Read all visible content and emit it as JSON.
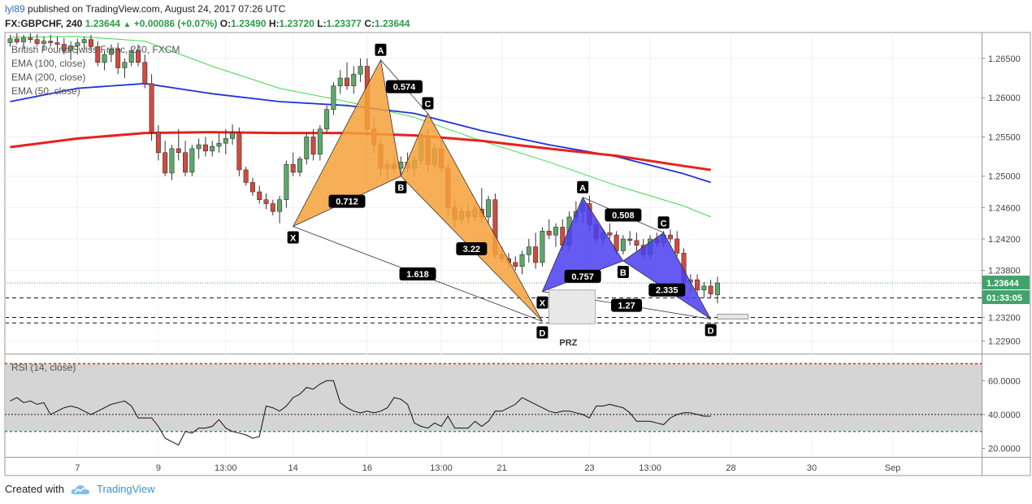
{
  "header": {
    "user": "lyl89",
    "published_text": "published on TradingView.com, August 24, 2017 07:26 UTC",
    "symbol": "FX:GBPCHF, 240",
    "last": "1.23644",
    "change": "+0.00086 (+0.07%)",
    "o_label": "O:",
    "o_value": "1.23490",
    "h_label": "H:",
    "h_value": "1.23720",
    "l_label": "L:",
    "l_value": "1.23377",
    "c_label": "C:",
    "c_value": "1.23644"
  },
  "legend": {
    "line1": "British Pound/Swiss Franc, 240, FXCM",
    "line2": "EMA (100, close)",
    "line3": "EMA (200, close)",
    "line4": "EMA (50, close)"
  },
  "footer": {
    "created_with": "Created with",
    "brand": "TradingView"
  },
  "colors": {
    "bull": "#5ba86a",
    "bear": "#d24a3e",
    "ema50": "#3ddc4a",
    "ema100": "#2132d6",
    "ema200": "#e5231d",
    "pattern_orange": "#f6a13a",
    "pattern_blue": "#4a3df0",
    "rsi_fill": "#d5d5d5",
    "price_tag": "#3fa36b"
  },
  "chart_data": [
    {
      "type": "candlestick",
      "title": "British Pound/Swiss Franc, 240, FXCM",
      "ylim": [
        1.2275,
        1.2683
      ],
      "y_ticks": [
        "1.26500",
        "1.26000",
        "1.25500",
        "1.25000",
        "1.24600",
        "1.24200",
        "1.23800",
        "1.23200",
        "1.22900"
      ],
      "y_tick_values": [
        1.265,
        1.26,
        1.255,
        1.25,
        1.246,
        1.242,
        1.238,
        1.232,
        1.229
      ],
      "x_ticks": [
        "7",
        "9",
        "13:00",
        "14",
        "16",
        "13:00",
        "21",
        "23",
        "13:00",
        "28",
        "30",
        "Sep"
      ],
      "x_tick_index": [
        10,
        22,
        32,
        42,
        53,
        64,
        73,
        86,
        95,
        107,
        119,
        131
      ],
      "grid": true,
      "candles": [
        [
          1.267,
          1.268,
          1.2665,
          1.2675
        ],
        [
          1.2675,
          1.2682,
          1.2668,
          1.2671
        ],
        [
          1.2671,
          1.268,
          1.2662,
          1.2676
        ],
        [
          1.2676,
          1.2683,
          1.267,
          1.2674
        ],
        [
          1.2674,
          1.2681,
          1.2665,
          1.2669
        ],
        [
          1.2669,
          1.2678,
          1.266,
          1.2672
        ],
        [
          1.2672,
          1.268,
          1.2665,
          1.267
        ],
        [
          1.267,
          1.2678,
          1.266,
          1.2668
        ],
        [
          1.2668,
          1.2676,
          1.2655,
          1.266
        ],
        [
          1.266,
          1.2672,
          1.2648,
          1.2666
        ],
        [
          1.2666,
          1.2675,
          1.2655,
          1.267
        ],
        [
          1.267,
          1.2678,
          1.2662,
          1.2674
        ],
        [
          1.2674,
          1.268,
          1.266,
          1.2665
        ],
        [
          1.2665,
          1.2672,
          1.264,
          1.2645
        ],
        [
          1.2645,
          1.266,
          1.2635,
          1.2655
        ],
        [
          1.2655,
          1.2668,
          1.2645,
          1.2662
        ],
        [
          1.2662,
          1.267,
          1.263,
          1.2638
        ],
        [
          1.2638,
          1.265,
          1.2625,
          1.2645
        ],
        [
          1.2645,
          1.2665,
          1.264,
          1.266
        ],
        [
          1.266,
          1.2668,
          1.264,
          1.2645
        ],
        [
          1.2645,
          1.2655,
          1.2612,
          1.2618
        ],
        [
          1.2618,
          1.263,
          1.2545,
          1.2556
        ],
        [
          1.2556,
          1.2565,
          1.252,
          1.253
        ],
        [
          1.253,
          1.2545,
          1.25,
          1.2504
        ],
        [
          1.2504,
          1.254,
          1.2495,
          1.2535
        ],
        [
          1.2535,
          1.256,
          1.252,
          1.253
        ],
        [
          1.253,
          1.2545,
          1.25,
          1.2505
        ],
        [
          1.2505,
          1.254,
          1.25,
          1.2535
        ],
        [
          1.2535,
          1.2548,
          1.2522,
          1.254
        ],
        [
          1.254,
          1.255,
          1.2525,
          1.2532
        ],
        [
          1.2532,
          1.2545,
          1.2525,
          1.2538
        ],
        [
          1.2538,
          1.2555,
          1.253,
          1.2542
        ],
        [
          1.2542,
          1.256,
          1.2528,
          1.2548
        ],
        [
          1.2548,
          1.2566,
          1.254,
          1.2555
        ],
        [
          1.2555,
          1.2562,
          1.25,
          1.2508
        ],
        [
          1.2508,
          1.2512,
          1.2488,
          1.2492
        ],
        [
          1.2492,
          1.2498,
          1.2475,
          1.248
        ],
        [
          1.248,
          1.2488,
          1.2465,
          1.247
        ],
        [
          1.247,
          1.2478,
          1.2458,
          1.2465
        ],
        [
          1.2465,
          1.247,
          1.245,
          1.2455
        ],
        [
          1.2455,
          1.2475,
          1.244,
          1.247
        ],
        [
          1.247,
          1.252,
          1.246,
          1.2515
        ],
        [
          1.2515,
          1.253,
          1.25,
          1.2505
        ],
        [
          1.2505,
          1.2525,
          1.25,
          1.2522
        ],
        [
          1.2522,
          1.2555,
          1.2515,
          1.255
        ],
        [
          1.255,
          1.256,
          1.252,
          1.2528
        ],
        [
          1.2528,
          1.2565,
          1.252,
          1.256
        ],
        [
          1.256,
          1.259,
          1.2555,
          1.2585
        ],
        [
          1.2585,
          1.262,
          1.2578,
          1.2615
        ],
        [
          1.2615,
          1.2635,
          1.2605,
          1.2625
        ],
        [
          1.2625,
          1.2645,
          1.261,
          1.2615
        ],
        [
          1.2615,
          1.264,
          1.2605,
          1.263
        ],
        [
          1.263,
          1.265,
          1.262,
          1.264
        ],
        [
          1.264,
          1.265,
          1.255,
          1.256
        ],
        [
          1.256,
          1.2575,
          1.253,
          1.254
        ],
        [
          1.254,
          1.2548,
          1.25,
          1.251
        ],
        [
          1.251,
          1.252,
          1.2495,
          1.2515
        ],
        [
          1.2515,
          1.2525,
          1.2505,
          1.251
        ],
        [
          1.251,
          1.2525,
          1.25,
          1.2518
        ],
        [
          1.2518,
          1.253,
          1.2505,
          1.251
        ],
        [
          1.251,
          1.2525,
          1.25,
          1.252
        ],
        [
          1.252,
          1.2555,
          1.2515,
          1.255
        ],
        [
          1.255,
          1.256,
          1.2505,
          1.2515
        ],
        [
          1.2515,
          1.254,
          1.251,
          1.2535
        ],
        [
          1.2535,
          1.2545,
          1.2505,
          1.251
        ],
        [
          1.251,
          1.2515,
          1.245,
          1.246
        ],
        [
          1.246,
          1.247,
          1.2435,
          1.2445
        ],
        [
          1.2445,
          1.246,
          1.244,
          1.2455
        ],
        [
          1.2455,
          1.2465,
          1.244,
          1.2448
        ],
        [
          1.2448,
          1.2462,
          1.2442,
          1.2458
        ],
        [
          1.2458,
          1.2485,
          1.244,
          1.2448
        ],
        [
          1.2448,
          1.2475,
          1.244,
          1.247
        ],
        [
          1.247,
          1.2478,
          1.2395,
          1.24
        ],
        [
          1.24,
          1.241,
          1.239,
          1.2395
        ],
        [
          1.2395,
          1.2402,
          1.2382,
          1.239
        ],
        [
          1.239,
          1.2398,
          1.238,
          1.2385
        ],
        [
          1.2385,
          1.2405,
          1.2375,
          1.24
        ],
        [
          1.24,
          1.242,
          1.239,
          1.241
        ],
        [
          1.241,
          1.2428,
          1.2382,
          1.239
        ],
        [
          1.239,
          1.2435,
          1.2385,
          1.243
        ],
        [
          1.243,
          1.2445,
          1.242,
          1.2425
        ],
        [
          1.2425,
          1.244,
          1.241,
          1.2435
        ],
        [
          1.2435,
          1.2445,
          1.2405,
          1.2412
        ],
        [
          1.2412,
          1.2455,
          1.2405,
          1.2448
        ],
        [
          1.2448,
          1.2468,
          1.244,
          1.2455
        ],
        [
          1.2455,
          1.247,
          1.244,
          1.2465
        ],
        [
          1.2465,
          1.2475,
          1.243,
          1.2438
        ],
        [
          1.2438,
          1.2445,
          1.2415,
          1.242
        ],
        [
          1.242,
          1.2432,
          1.2412,
          1.2428
        ],
        [
          1.2428,
          1.244,
          1.242,
          1.2425
        ],
        [
          1.2425,
          1.243,
          1.24,
          1.2405
        ],
        [
          1.2405,
          1.2425,
          1.24,
          1.242
        ],
        [
          1.242,
          1.243,
          1.2412,
          1.2418
        ],
        [
          1.2418,
          1.2428,
          1.2405,
          1.2412
        ],
        [
          1.2412,
          1.242,
          1.2395,
          1.24
        ],
        [
          1.24,
          1.2425,
          1.2395,
          1.242
        ],
        [
          1.242,
          1.2428,
          1.241,
          1.2415
        ],
        [
          1.2415,
          1.243,
          1.241,
          1.2425
        ],
        [
          1.2425,
          1.2432,
          1.2415,
          1.242
        ],
        [
          1.242,
          1.243,
          1.2398,
          1.2402
        ],
        [
          1.2402,
          1.2408,
          1.236,
          1.2365
        ],
        [
          1.2365,
          1.2375,
          1.2352,
          1.2368
        ],
        [
          1.2368,
          1.2375,
          1.235,
          1.2355
        ],
        [
          1.2355,
          1.2365,
          1.2345,
          1.236
        ],
        [
          1.236,
          1.2368,
          1.2345,
          1.235
        ],
        [
          1.2349,
          1.2372,
          1.2338,
          1.2364
        ]
      ],
      "ema50": [
        [
          0,
          1.2677
        ],
        [
          10,
          1.2678
        ],
        [
          20,
          1.2672
        ],
        [
          30,
          1.264
        ],
        [
          40,
          1.2612
        ],
        [
          50,
          1.2595
        ],
        [
          60,
          1.2575
        ],
        [
          70,
          1.2545
        ],
        [
          80,
          1.2518
        ],
        [
          90,
          1.2488
        ],
        [
          100,
          1.2462
        ],
        [
          104,
          1.2448
        ]
      ],
      "ema100": [
        [
          0,
          1.2595
        ],
        [
          10,
          1.2612
        ],
        [
          20,
          1.2618
        ],
        [
          30,
          1.2605
        ],
        [
          40,
          1.2595
        ],
        [
          50,
          1.259
        ],
        [
          60,
          1.258
        ],
        [
          70,
          1.2558
        ],
        [
          80,
          1.254
        ],
        [
          90,
          1.2525
        ],
        [
          100,
          1.2503
        ],
        [
          104,
          1.2492
        ]
      ],
      "ema200": [
        [
          0,
          1.2537
        ],
        [
          10,
          1.2548
        ],
        [
          20,
          1.2555
        ],
        [
          30,
          1.2556
        ],
        [
          40,
          1.2555
        ],
        [
          50,
          1.2555
        ],
        [
          60,
          1.2552
        ],
        [
          70,
          1.2545
        ],
        [
          80,
          1.2535
        ],
        [
          90,
          1.2526
        ],
        [
          100,
          1.2513
        ],
        [
          104,
          1.2508
        ]
      ],
      "price_tag": "1.23644",
      "time_tag": "01:33:05",
      "patterns": [
        {
          "name": "orange",
          "points": {
            "X": [
              42,
              1.2436
            ],
            "A": [
              55,
              1.2648
            ],
            "B": [
              58,
              1.25
            ],
            "C": [
              62,
              1.258
            ],
            "D": [
              79,
              1.2315
            ]
          },
          "ratios": [
            "0.712",
            "0.574",
            "3.22",
            "1.618"
          ]
        },
        {
          "name": "blue",
          "points": {
            "X": [
              79,
              1.2353
            ],
            "A": [
              85,
              1.2473
            ],
            "B": [
              91,
              1.2392
            ],
            "C": [
              97,
              1.2428
            ],
            "D": [
              104,
              1.2318
            ]
          },
          "ratios": [
            "0.757",
            "0.508",
            "2.335",
            "1.27"
          ]
        }
      ],
      "prz_label": "PRZ",
      "dashed_levels": [
        1.2345,
        1.232,
        1.2313
      ]
    },
    {
      "type": "line",
      "title": "RSI (14, close)",
      "ylim": [
        15,
        75
      ],
      "y_ticks": [
        "60.0000",
        "40.0000",
        "20.0000"
      ],
      "y_tick_values": [
        60,
        40,
        20
      ],
      "levels": [
        70,
        30
      ],
      "mid_level": 40,
      "values": [
        48,
        50,
        47,
        48,
        46,
        47,
        40,
        42,
        44,
        45,
        44,
        42,
        40,
        42,
        44,
        46,
        47,
        48,
        45,
        38,
        38,
        38,
        33,
        26,
        24,
        22,
        30,
        29,
        32,
        32,
        33,
        37,
        32,
        30,
        29,
        28,
        26,
        27,
        45,
        44,
        42,
        45,
        50,
        52,
        56,
        55,
        58,
        60,
        60,
        47,
        44,
        42,
        41,
        42,
        41,
        42,
        44,
        50,
        49,
        46,
        35,
        33,
        32,
        35,
        33,
        39,
        32,
        32,
        32,
        36,
        33,
        36,
        42,
        42,
        44,
        46,
        50,
        48,
        46,
        44,
        42,
        41,
        42,
        42,
        41,
        40,
        38,
        45,
        45,
        46,
        45,
        44,
        41,
        36,
        36,
        36,
        35,
        34,
        38,
        40,
        41,
        41,
        40,
        39,
        39
      ]
    }
  ]
}
